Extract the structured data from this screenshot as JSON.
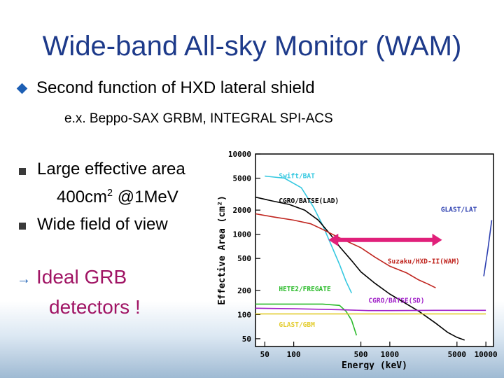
{
  "slide": {
    "title": "Wide-band All-sky Monitor (WAM)",
    "bullet1": "Second function of HXD lateral shield",
    "example": "e.x. Beppo-SAX GRBM, INTEGRAL SPI-ACS",
    "bullet2": "Large effective area",
    "area_value": "400cm",
    "area_exp": "2",
    "area_energy": " @1MeV",
    "bullet3": "Wide field of view",
    "conclusion_line1": "Ideal GRB",
    "conclusion_line2": "detectors !",
    "colors": {
      "title": "#1d3a8a",
      "conclusion": "#a01464",
      "bullet_marker": "#1d5fb4"
    },
    "icons": {
      "bullet1": "diamond-bullet-icon",
      "bullet2": "square-bullet-icon",
      "conclusion": "right-arrow-icon"
    }
  },
  "chart_data": {
    "type": "line",
    "xlabel": "Energy (keV)",
    "ylabel": "Effective Area (cm²)",
    "xscale": "log",
    "yscale": "log",
    "xlim": [
      40,
      12000
    ],
    "ylim": [
      40,
      10000
    ],
    "x_ticks": [
      50,
      100,
      500,
      1000,
      5000,
      10000
    ],
    "y_ticks": [
      50,
      100,
      200,
      500,
      1000,
      2000,
      5000,
      10000
    ],
    "grid": false,
    "series": [
      {
        "name": "Swift/BAT",
        "color": "#35c8e0",
        "points": [
          [
            50,
            5300
          ],
          [
            80,
            5000
          ],
          [
            120,
            3800
          ],
          [
            160,
            2200
          ],
          [
            200,
            1300
          ],
          [
            250,
            700
          ],
          [
            300,
            420
          ],
          [
            350,
            260
          ],
          [
            400,
            185
          ]
        ]
      },
      {
        "name": "CGRO/BATSE(LAD)",
        "color": "#000000",
        "points": [
          [
            40,
            2900
          ],
          [
            60,
            2600
          ],
          [
            90,
            2350
          ],
          [
            130,
            2000
          ],
          [
            180,
            1500
          ],
          [
            240,
            1000
          ],
          [
            300,
            700
          ],
          [
            400,
            470
          ],
          [
            500,
            340
          ],
          [
            700,
            245
          ],
          [
            1000,
            180
          ],
          [
            2000,
            110
          ],
          [
            3000,
            78
          ],
          [
            4000,
            60
          ],
          [
            5000,
            52
          ],
          [
            6000,
            48
          ]
        ]
      },
      {
        "name": "GLAST/LAT",
        "color": "#2c3fb0",
        "points": [
          [
            9500,
            300
          ],
          [
            10500,
            650
          ],
          [
            11500,
            1500
          ]
        ]
      },
      {
        "name": "Suzaku/HXD-II(WAM)",
        "color": "#c0251f",
        "points": [
          [
            40,
            1800
          ],
          [
            60,
            1650
          ],
          [
            100,
            1500
          ],
          [
            150,
            1350
          ],
          [
            200,
            1150
          ],
          [
            300,
            900
          ],
          [
            500,
            680
          ],
          [
            700,
            520
          ],
          [
            1000,
            400
          ],
          [
            1500,
            330
          ],
          [
            2000,
            270
          ],
          [
            2500,
            240
          ],
          [
            3000,
            215
          ]
        ]
      },
      {
        "name": "HETE2/FREGATE",
        "color": "#2bbb2b",
        "points": [
          [
            40,
            135
          ],
          [
            100,
            135
          ],
          [
            200,
            135
          ],
          [
            300,
            130
          ],
          [
            350,
            110
          ],
          [
            400,
            85
          ],
          [
            450,
            55
          ]
        ]
      },
      {
        "name": "CGRO/BATSE(SD)",
        "color": "#a020c8",
        "points": [
          [
            40,
            120
          ],
          [
            100,
            118
          ],
          [
            300,
            115
          ],
          [
            600,
            112
          ],
          [
            1000,
            112
          ],
          [
            3000,
            113
          ],
          [
            10000,
            113
          ]
        ]
      },
      {
        "name": "GLAST/GBM",
        "color": "#e3cc2e",
        "points": [
          [
            40,
            102
          ],
          [
            100,
            102
          ],
          [
            300,
            102
          ],
          [
            1000,
            102
          ],
          [
            3000,
            102
          ],
          [
            10000,
            102
          ]
        ]
      }
    ],
    "annotation": {
      "type": "double-arrow",
      "color": "#e0207a",
      "from": [
        230,
        850
      ],
      "to": [
        3500,
        850
      ]
    }
  }
}
